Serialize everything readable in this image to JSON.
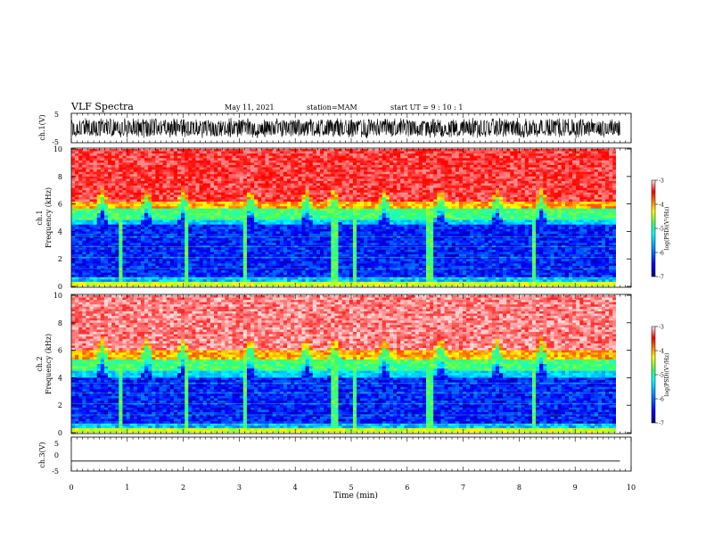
{
  "chart_data": [
    {
      "type": "line",
      "header": {
        "title": "VLF Spectra",
        "date": "May 11, 2021",
        "station": "station=MAM",
        "start": "start  UT =   9 : 10 : 1"
      },
      "ylabel": "ch.1(V)",
      "ylim": [
        -5,
        5
      ],
      "yticks": [
        "5",
        "-5"
      ],
      "x_range_min": [
        0,
        9.8
      ],
      "description": "waveform amplitude, noisy signal spanning roughly -3 to +3 V"
    },
    {
      "type": "heatmap",
      "ylabel_line1": "ch.1",
      "ylabel_line2": "Frequency (kHz)",
      "ylim": [
        0,
        10
      ],
      "yticks": [
        "0",
        "2",
        "4",
        "6",
        "8",
        "10"
      ],
      "colorbar": {
        "label": "log(PSD)(V²/Hz)",
        "range": [
          -7,
          -3
        ],
        "ticks": [
          "-3",
          "-4",
          "-5",
          "-6",
          "-7"
        ]
      },
      "band_edges_kHz": {
        "red_above": 6.2,
        "yellow_at": 5.6,
        "green_to": 4.8,
        "blue_below": 4.5
      }
    },
    {
      "type": "heatmap",
      "ylabel_line1": "ch.2",
      "ylabel_line2": "Frequency (kHz)",
      "ylim": [
        0,
        10
      ],
      "yticks": [
        "0",
        "2",
        "4",
        "6",
        "8",
        "10"
      ],
      "colorbar": {
        "label": "log(PSD)(V²/Hz)",
        "range": [
          -7,
          -3
        ],
        "ticks": [
          "-3",
          "-4",
          "-5",
          "-6",
          "-7"
        ]
      },
      "band_edges_kHz": {
        "red_above": 6.0,
        "yellow_at": 5.4,
        "green_to": 4.5,
        "blue_below": 4.0
      }
    },
    {
      "type": "line",
      "ylabel": "ch.3(V)",
      "ylim": [
        -5,
        5
      ],
      "yticks": [
        "5",
        "0",
        "-5"
      ],
      "constant_value": -2,
      "xlabel": "Time (min)",
      "xlim": [
        0,
        10
      ],
      "xticks": [
        "0",
        "1",
        "2",
        "3",
        "4",
        "5",
        "6",
        "7",
        "8",
        "9",
        "10"
      ]
    }
  ],
  "colors": {
    "jet_stops": [
      "#00007f",
      "#0000ff",
      "#0080ff",
      "#00ffff",
      "#80ff80",
      "#ffff00",
      "#ff8000",
      "#ff0000",
      "#ffd0d0"
    ]
  }
}
